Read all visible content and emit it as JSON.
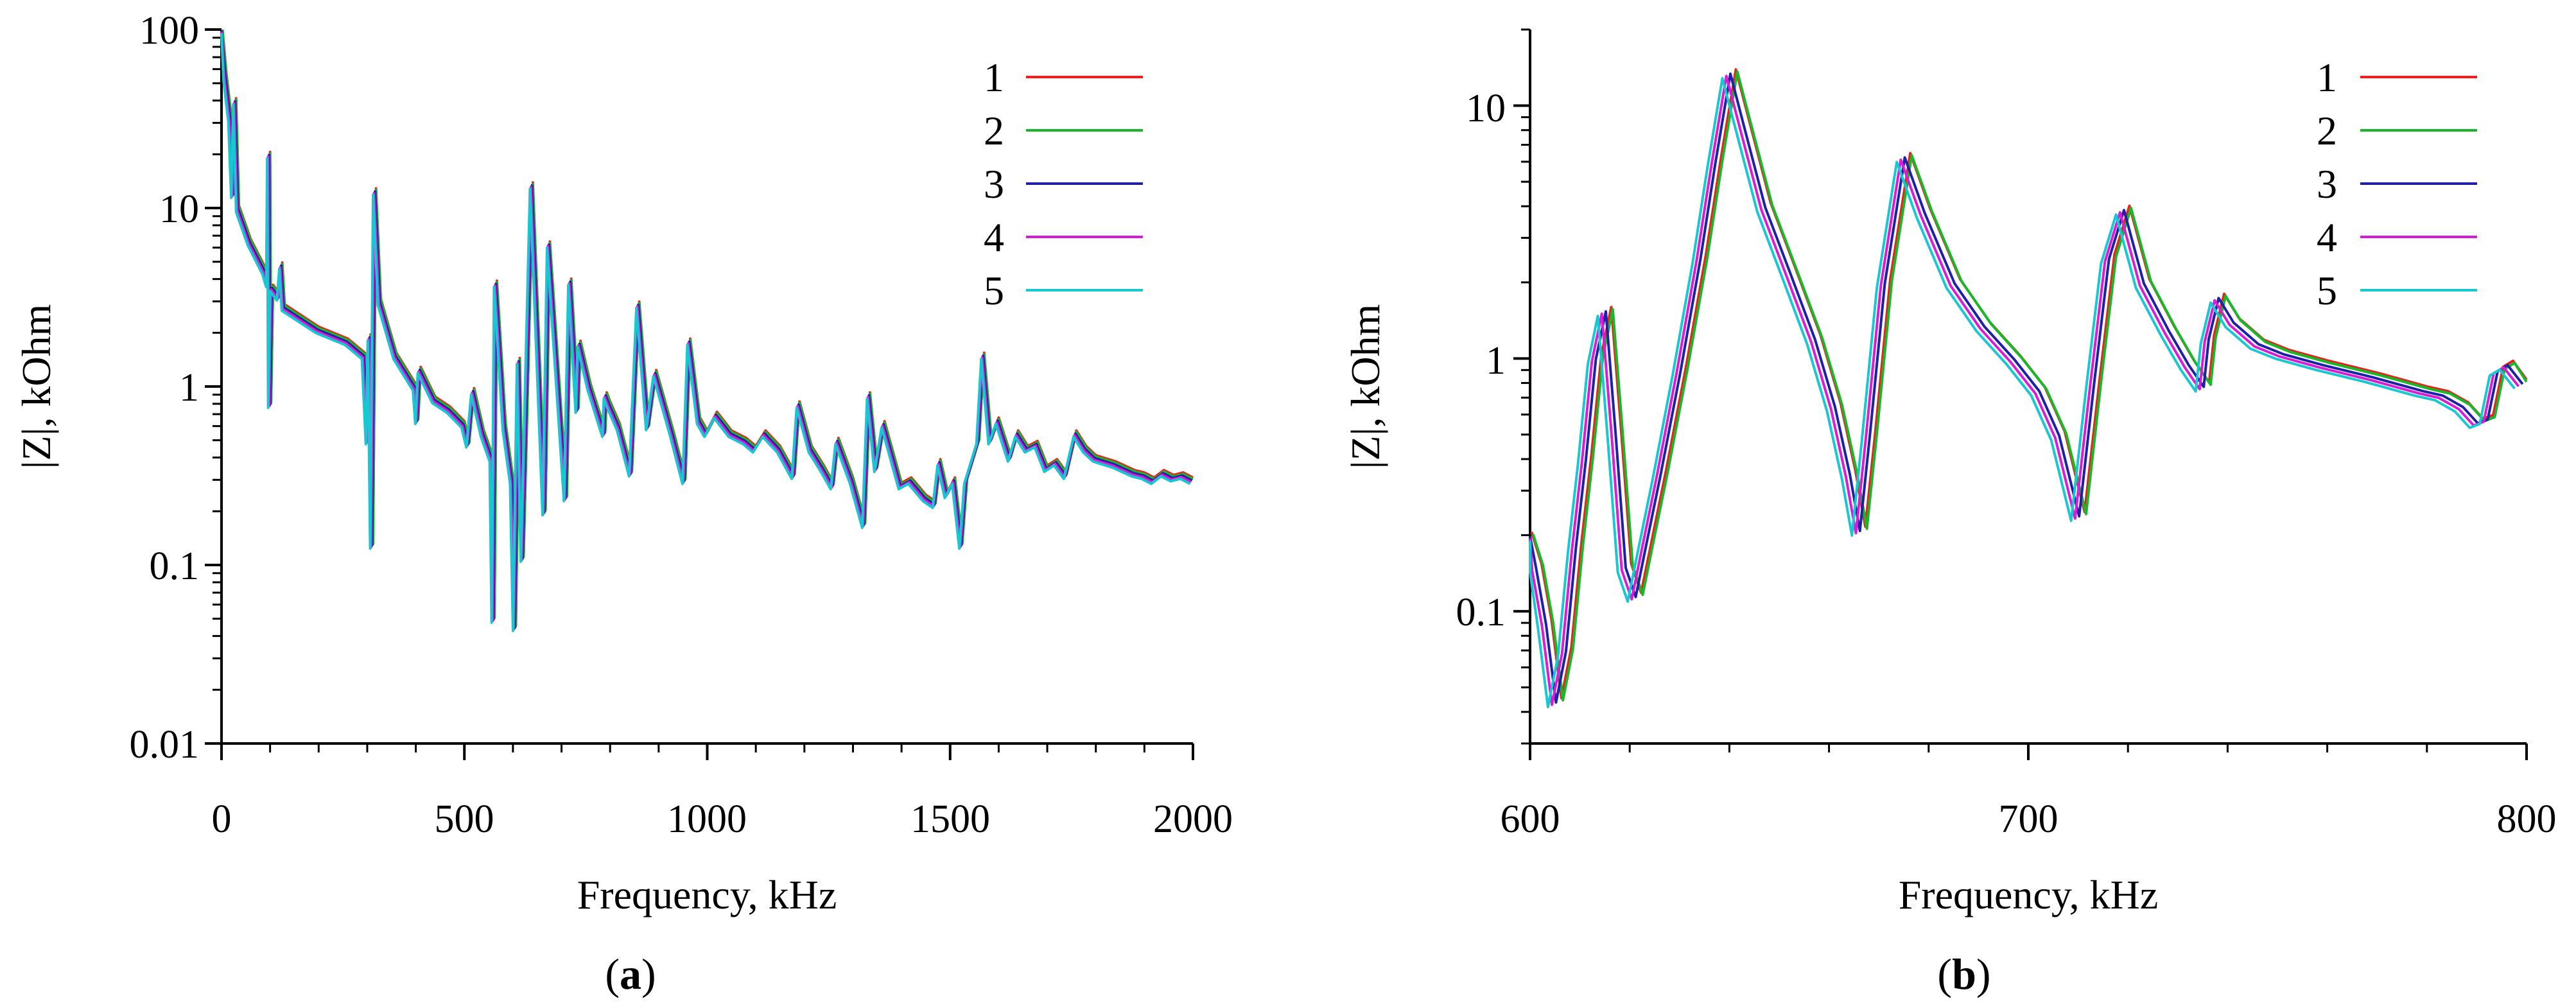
{
  "series_colors": {
    "1": "#e8231f",
    "2": "#18b82a",
    "3": "#1f1fa8",
    "4": "#d61ed6",
    "5": "#17c8d2"
  },
  "chart_data": [
    {
      "id": "a",
      "type": "line",
      "caption_letter": "a",
      "xlabel": "Frequency, kHz",
      "ylabel": "|Z|, kOhm",
      "xscale": "linear",
      "yscale": "log",
      "xlim": [
        0,
        2000
      ],
      "ylim": [
        0.01,
        100
      ],
      "xticks": [
        0,
        500,
        1000,
        1500,
        2000
      ],
      "xtick_labels": [
        "0",
        "500",
        "1000",
        "1500",
        "2000"
      ],
      "yticks": [
        0.01,
        0.1,
        1,
        10,
        100
      ],
      "ytick_labels": [
        "0.01",
        "0.1",
        "1",
        "10",
        "100"
      ],
      "legend_position": "top-right",
      "grid": false,
      "series_names": [
        "1",
        "2",
        "3",
        "4",
        "5"
      ],
      "base_curve": [
        [
          2,
          100
        ],
        [
          10,
          55
        ],
        [
          20,
          32
        ],
        [
          26,
          12
        ],
        [
          30,
          40
        ],
        [
          36,
          10
        ],
        [
          60,
          6.5
        ],
        [
          90,
          4.5
        ],
        [
          98,
          3.8
        ],
        [
          100,
          20
        ],
        [
          102,
          0.8
        ],
        [
          106,
          3.6
        ],
        [
          120,
          3.2
        ],
        [
          125,
          4.8
        ],
        [
          130,
          2.8
        ],
        [
          200,
          2.1
        ],
        [
          260,
          1.8
        ],
        [
          295,
          1.5
        ],
        [
          303,
          0.5
        ],
        [
          307,
          1.9
        ],
        [
          312,
          0.13
        ],
        [
          318,
          12.5
        ],
        [
          328,
          3.0
        ],
        [
          360,
          1.5
        ],
        [
          400,
          1.0
        ],
        [
          405,
          0.65
        ],
        [
          410,
          1.25
        ],
        [
          440,
          0.85
        ],
        [
          470,
          0.75
        ],
        [
          500,
          0.62
        ],
        [
          510,
          0.48
        ],
        [
          520,
          0.95
        ],
        [
          540,
          0.55
        ],
        [
          558,
          0.4
        ],
        [
          562,
          0.05
        ],
        [
          567,
          3.8
        ],
        [
          585,
          0.6
        ],
        [
          600,
          0.3
        ],
        [
          606,
          0.045
        ],
        [
          614,
          1.4
        ],
        [
          622,
          0.11
        ],
        [
          641,
          13.5
        ],
        [
          667,
          0.2
        ],
        [
          676,
          6.3
        ],
        [
          711,
          0.24
        ],
        [
          720,
          3.9
        ],
        [
          735,
          0.75
        ],
        [
          739,
          1.75
        ],
        [
          760,
          1.0
        ],
        [
          790,
          0.55
        ],
        [
          793,
          0.9
        ],
        [
          800,
          0.8
        ],
        [
          820,
          0.6
        ],
        [
          845,
          0.33
        ],
        [
          860,
          2.9
        ],
        [
          880,
          0.6
        ],
        [
          895,
          1.2
        ],
        [
          930,
          0.55
        ],
        [
          955,
          0.3
        ],
        [
          965,
          1.8
        ],
        [
          985,
          0.65
        ],
        [
          1000,
          0.55
        ],
        [
          1020,
          0.7
        ],
        [
          1050,
          0.55
        ],
        [
          1080,
          0.5
        ],
        [
          1100,
          0.45
        ],
        [
          1120,
          0.55
        ],
        [
          1150,
          0.45
        ],
        [
          1180,
          0.32
        ],
        [
          1190,
          0.8
        ],
        [
          1215,
          0.45
        ],
        [
          1240,
          0.35
        ],
        [
          1260,
          0.28
        ],
        [
          1270,
          0.5
        ],
        [
          1300,
          0.3
        ],
        [
          1325,
          0.17
        ],
        [
          1335,
          0.9
        ],
        [
          1350,
          0.35
        ],
        [
          1365,
          0.62
        ],
        [
          1400,
          0.28
        ],
        [
          1420,
          0.3
        ],
        [
          1450,
          0.24
        ],
        [
          1470,
          0.22
        ],
        [
          1480,
          0.38
        ],
        [
          1495,
          0.25
        ],
        [
          1510,
          0.3
        ],
        [
          1525,
          0.13
        ],
        [
          1535,
          0.3
        ],
        [
          1560,
          0.5
        ],
        [
          1570,
          1.5
        ],
        [
          1585,
          0.5
        ],
        [
          1600,
          0.65
        ],
        [
          1625,
          0.4
        ],
        [
          1640,
          0.55
        ],
        [
          1660,
          0.45
        ],
        [
          1680,
          0.48
        ],
        [
          1700,
          0.35
        ],
        [
          1720,
          0.38
        ],
        [
          1740,
          0.32
        ],
        [
          1760,
          0.55
        ],
        [
          1780,
          0.45
        ],
        [
          1800,
          0.4
        ],
        [
          1840,
          0.37
        ],
        [
          1880,
          0.33
        ],
        [
          1900,
          0.32
        ],
        [
          1920,
          0.3
        ],
        [
          1940,
          0.33
        ],
        [
          1960,
          0.31
        ],
        [
          1980,
          0.32
        ],
        [
          2000,
          0.3
        ]
      ]
    },
    {
      "id": "b",
      "type": "line",
      "caption_letter": "b",
      "xlabel": "Frequency, kHz",
      "ylabel": "|Z|, kOhm",
      "xscale": "linear",
      "yscale": "log",
      "xlim": [
        600,
        800
      ],
      "ylim": [
        0.03,
        20
      ],
      "xticks": [
        600,
        700,
        800
      ],
      "xtick_labels": [
        "600",
        "700",
        "800"
      ],
      "yticks": [
        0.1,
        1,
        10
      ],
      "ytick_labels": [
        "0.1",
        "1",
        "10"
      ],
      "legend_position": "top-right",
      "grid": false,
      "series_names": [
        "1",
        "2",
        "3",
        "4",
        "5"
      ],
      "base_curve": [
        [
          600,
          0.2
        ],
        [
          602,
          0.15
        ],
        [
          604,
          0.09
        ],
        [
          606,
          0.044
        ],
        [
          608,
          0.07
        ],
        [
          610,
          0.18
        ],
        [
          612,
          0.4
        ],
        [
          614,
          1.0
        ],
        [
          616,
          1.55
        ],
        [
          618,
          0.5
        ],
        [
          620,
          0.15
        ],
        [
          622,
          0.115
        ],
        [
          624,
          0.18
        ],
        [
          627,
          0.35
        ],
        [
          631,
          0.9
        ],
        [
          635,
          2.5
        ],
        [
          638,
          6.0
        ],
        [
          641,
          13.5
        ],
        [
          644,
          8.0
        ],
        [
          648,
          4.0
        ],
        [
          653,
          2.2
        ],
        [
          658,
          1.2
        ],
        [
          662,
          0.65
        ],
        [
          665,
          0.35
        ],
        [
          667,
          0.21
        ],
        [
          669,
          0.5
        ],
        [
          672,
          2.0
        ],
        [
          676,
          6.3
        ],
        [
          680,
          3.8
        ],
        [
          686,
          2.0
        ],
        [
          692,
          1.35
        ],
        [
          698,
          1.0
        ],
        [
          703,
          0.75
        ],
        [
          707,
          0.5
        ],
        [
          711,
          0.24
        ],
        [
          714,
          0.8
        ],
        [
          717,
          2.5
        ],
        [
          720,
          3.9
        ],
        [
          724,
          2.0
        ],
        [
          729,
          1.3
        ],
        [
          733,
          0.95
        ],
        [
          736,
          0.78
        ],
        [
          737,
          1.2
        ],
        [
          739,
          1.75
        ],
        [
          742,
          1.4
        ],
        [
          747,
          1.15
        ],
        [
          752,
          1.05
        ],
        [
          760,
          0.95
        ],
        [
          770,
          0.85
        ],
        [
          780,
          0.75
        ],
        [
          784,
          0.72
        ],
        [
          788,
          0.65
        ],
        [
          791,
          0.56
        ],
        [
          793,
          0.58
        ],
        [
          795,
          0.9
        ],
        [
          797,
          0.95
        ],
        [
          800,
          0.8
        ]
      ]
    }
  ]
}
